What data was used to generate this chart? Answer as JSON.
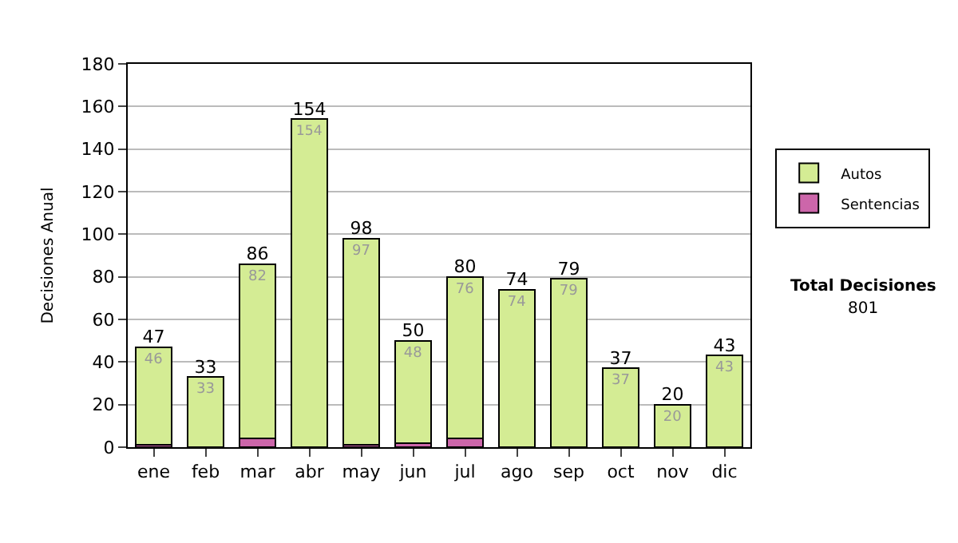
{
  "chart_data": {
    "type": "bar",
    "stacked": true,
    "ylabel": "Decisiones Anual",
    "categories": [
      "ene",
      "feb",
      "mar",
      "abr",
      "may",
      "jun",
      "jul",
      "ago",
      "sep",
      "oct",
      "nov",
      "dic"
    ],
    "series": [
      {
        "name": "Sentencias",
        "color": "#cc66aa",
        "values": [
          1,
          0,
          4,
          0,
          1,
          2,
          4,
          0,
          0,
          0,
          0,
          0
        ]
      },
      {
        "name": "Autos",
        "color": "#d4ec94",
        "values": [
          46,
          33,
          82,
          154,
          97,
          48,
          76,
          74,
          79,
          37,
          20,
          43
        ],
        "value_labels": [
          "46",
          "33",
          "82",
          "154",
          "97",
          "48",
          "76",
          "74",
          "79",
          "37",
          "20",
          "43"
        ]
      }
    ],
    "totals": [
      "47",
      "33",
      "86",
      "154",
      "98",
      "50",
      "80",
      "74",
      "79",
      "37",
      "20",
      "43"
    ],
    "ylim": [
      0,
      180
    ],
    "yticks": [
      0,
      20,
      40,
      60,
      80,
      100,
      120,
      140,
      160,
      180
    ],
    "grid": "y",
    "legend": "right",
    "annotations": [
      "Total Decisiones",
      "801"
    ]
  }
}
